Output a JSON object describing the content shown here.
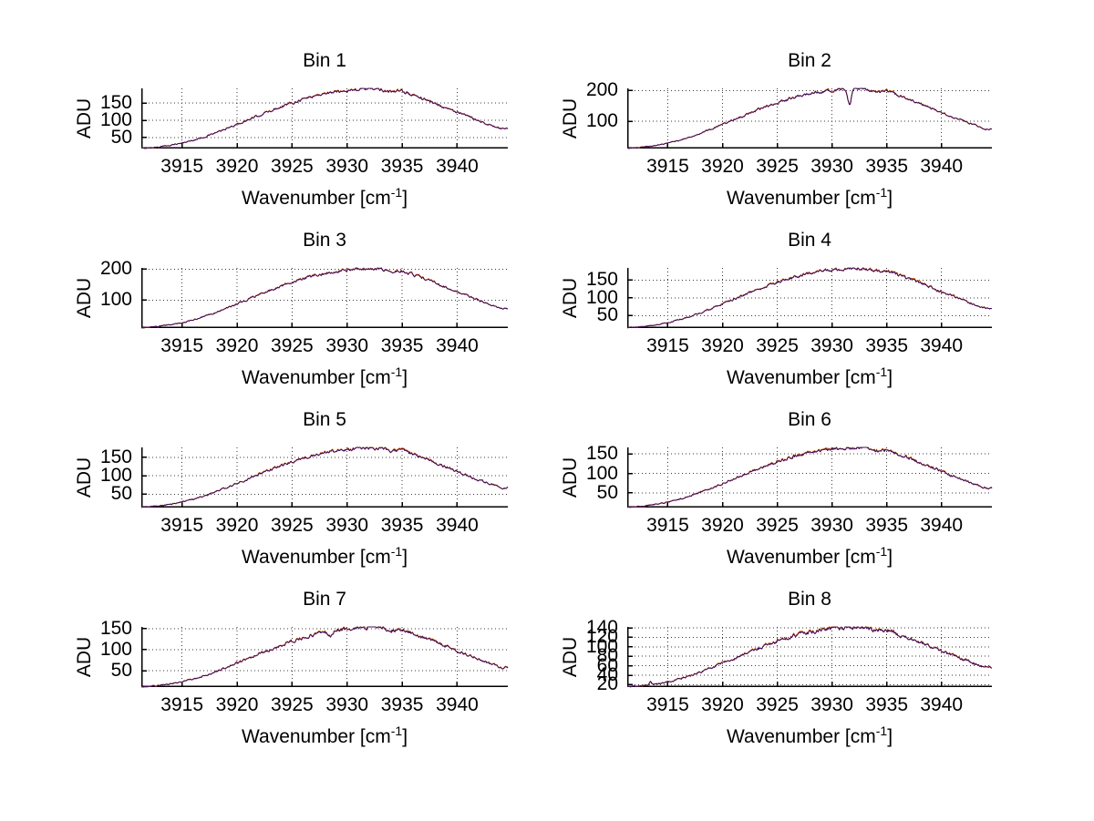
{
  "figure": {
    "background": "#ffffff"
  },
  "labels": {
    "ylabel": "ADU",
    "xlabel_base": "Wavenumber [cm",
    "xlabel_sup": "-1",
    "xlabel_end": "]"
  },
  "style": {
    "line_dark": "#38105c",
    "line_red": "#c01030",
    "line_orange": "#ff9800",
    "grid_color": "#3a3a3a",
    "axis_color": "#000000",
    "text_color": "#000000"
  },
  "chart_data": {
    "type": "line",
    "layout": "4 rows x 2 cols",
    "xlabel": "Wavenumber [cm^-1]",
    "ylabel": "ADU",
    "xlim": [
      3911.3,
      3944.6
    ],
    "x_ticks": [
      3915,
      3920,
      3925,
      3930,
      3935,
      3940
    ],
    "grid": "dotted",
    "envelope_x_start": 3911,
    "envelope_x_step": 1,
    "subplots": [
      {
        "title": "Bin 1",
        "y_ticks": [
          50,
          100,
          150
        ],
        "ylim": [
          18,
          193
        ],
        "adu": [
          18,
          20,
          23,
          28,
          34,
          42,
          51,
          63,
          75,
          88,
          101,
          114,
          127,
          140,
          151,
          162,
          171,
          178,
          183,
          187,
          190,
          192,
          191,
          182,
          185,
          173,
          162,
          149,
          136,
          123,
          111,
          99,
          86,
          75
        ],
        "spikes": []
      },
      {
        "title": "Bin 2",
        "y_ticks": [
          100,
          200
        ],
        "ylim": [
          12,
          207
        ],
        "adu": [
          12,
          14,
          18,
          23,
          30,
          38,
          49,
          62,
          75,
          90,
          105,
          119,
          134,
          148,
          160,
          172,
          182,
          190,
          196,
          201,
          204,
          206,
          205,
          194,
          198,
          185,
          172,
          158,
          144,
          129,
          115,
          102,
          88,
          75
        ],
        "spikes": [
          {
            "x": 3931.6,
            "drop": 52,
            "width": 0.22
          }
        ]
      },
      {
        "title": "Bin 3",
        "y_ticks": [
          100,
          200
        ],
        "ylim": [
          10,
          204
        ],
        "adu": [
          10,
          12,
          16,
          21,
          27,
          36,
          47,
          59,
          73,
          88,
          102,
          117,
          131,
          145,
          157,
          169,
          179,
          187,
          193,
          198,
          201,
          203,
          202,
          191,
          195,
          182,
          169,
          156,
          141,
          126,
          113,
          99,
          86,
          73
        ],
        "spikes": []
      },
      {
        "title": "Bin 4",
        "y_ticks": [
          50,
          100,
          150
        ],
        "ylim": [
          15,
          184
        ],
        "adu": [
          15,
          17,
          20,
          24,
          30,
          38,
          47,
          58,
          70,
          83,
          95,
          108,
          121,
          132,
          143,
          154,
          162,
          169,
          175,
          179,
          181,
          183,
          182,
          173,
          176,
          165,
          154,
          142,
          129,
          116,
          105,
          93,
          81,
          70
        ],
        "spikes": []
      },
      {
        "title": "Bin 5",
        "y_ticks": [
          50,
          100,
          150
        ],
        "ylim": [
          14,
          177
        ],
        "adu": [
          14,
          16,
          19,
          23,
          29,
          36,
          45,
          56,
          67,
          79,
          91,
          104,
          116,
          127,
          138,
          148,
          156,
          163,
          168,
          172,
          175,
          176,
          175,
          166,
          170,
          158,
          148,
          136,
          124,
          112,
          100,
          89,
          78,
          67
        ],
        "spikes": []
      },
      {
        "title": "Bin 6",
        "y_ticks": [
          50,
          100,
          150
        ],
        "ylim": [
          12,
          167
        ],
        "adu": [
          12,
          14,
          17,
          21,
          26,
          33,
          41,
          52,
          62,
          74,
          86,
          97,
          109,
          120,
          130,
          139,
          147,
          153,
          158,
          162,
          165,
          166,
          165,
          157,
          160,
          149,
          139,
          128,
          117,
          105,
          94,
          83,
          72,
          62
        ],
        "spikes": []
      },
      {
        "title": "Bin 7",
        "y_ticks": [
          50,
          100,
          150
        ],
        "ylim": [
          11,
          154
        ],
        "adu": [
          11,
          13,
          15,
          19,
          24,
          30,
          38,
          47,
          57,
          68,
          79,
          90,
          100,
          110,
          120,
          128,
          136,
          141,
          146,
          149,
          152,
          153,
          152,
          145,
          148,
          138,
          128,
          118,
          108,
          97,
          87,
          77,
          67,
          57
        ],
        "spikes": [
          {
            "x": 3928.5,
            "drop": 10,
            "width": 0.3
          }
        ]
      },
      {
        "title": "Bin 8",
        "y_ticks": [
          20,
          40,
          60,
          80,
          100,
          120,
          140
        ],
        "ylim": [
          15,
          142
        ],
        "adu": [
          15,
          17,
          19,
          22,
          26,
          32,
          39,
          47,
          56,
          66,
          75,
          85,
          94,
          103,
          112,
          119,
          126,
          131,
          135,
          138,
          140,
          141,
          141,
          134,
          136,
          127,
          119,
          110,
          101,
          91,
          82,
          73,
          65,
          56
        ],
        "spikes": [
          {
            "x": 3913.4,
            "drop": -6,
            "width": 0.15
          }
        ]
      }
    ]
  }
}
